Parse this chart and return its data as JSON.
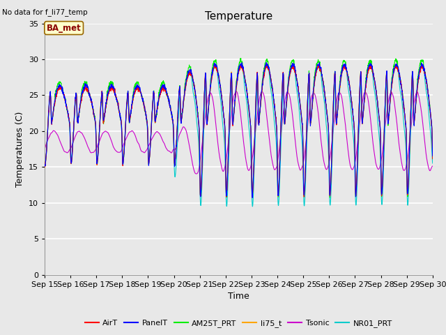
{
  "title": "Temperature",
  "ylabel": "Temperatures (C)",
  "xlabel": "Time",
  "no_data_text": "No data for f_li77_temp",
  "ba_met_label": "BA_met",
  "ylim": [
    0,
    35
  ],
  "yticks": [
    0,
    5,
    10,
    15,
    20,
    25,
    30,
    35
  ],
  "x_tick_labels": [
    "Sep 15",
    "Sep 16",
    "Sep 17",
    "Sep 18",
    "Sep 19",
    "Sep 20",
    "Sep 21",
    "Sep 22",
    "Sep 23",
    "Sep 24",
    "Sep 25",
    "Sep 26",
    "Sep 27",
    "Sep 28",
    "Sep 29",
    "Sep 30"
  ],
  "series_colors": {
    "AirT": "#FF0000",
    "PanelT": "#0000FF",
    "AM25T_PRT": "#00EE00",
    "li75_t": "#FFA500",
    "Tsonic": "#CC00CC",
    "NR01_PRT": "#00CCCC"
  },
  "legend_entries": [
    "AirT",
    "PanelT",
    "AM25T_PRT",
    "li75_t",
    "Tsonic",
    "NR01_PRT"
  ],
  "background_color": "#E8E8E8",
  "grid_color": "#FFFFFF",
  "title_fontsize": 11,
  "label_fontsize": 9,
  "tick_fontsize": 8
}
